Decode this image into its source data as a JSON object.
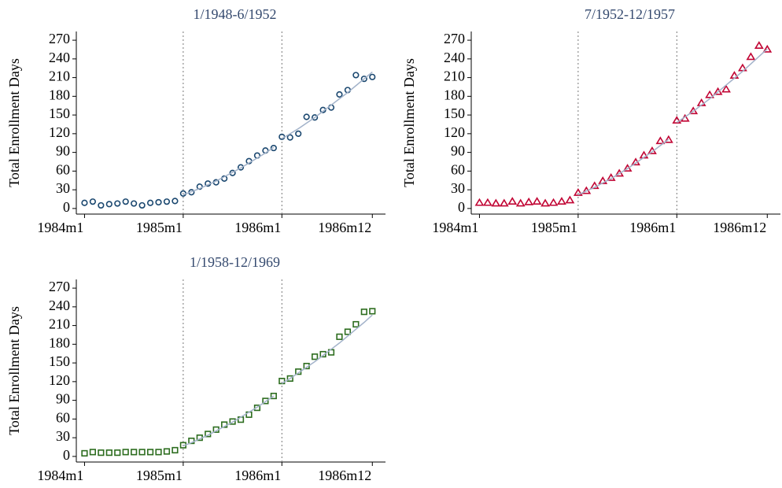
{
  "chart_data": [
    {
      "type": "scatter",
      "title": "1/1948-6/1952",
      "ylabel": "Total Enrollment Days",
      "x": [
        288,
        289,
        290,
        291,
        292,
        293,
        294,
        295,
        296,
        297,
        298,
        299,
        300,
        301,
        302,
        303,
        304,
        305,
        306,
        307,
        308,
        309,
        310,
        311,
        312,
        313,
        314,
        315,
        316,
        317,
        318,
        319,
        320,
        321,
        322,
        323
      ],
      "series": [
        {
          "color": "#1a476f",
          "marker": "circle",
          "values": [
            9,
            11,
            5,
            7,
            8,
            11,
            8,
            5,
            9,
            10,
            11,
            12,
            24,
            26,
            35,
            40,
            42,
            48,
            57,
            66,
            76,
            85,
            93,
            97,
            115,
            114,
            120,
            147,
            146,
            158,
            162,
            183,
            190,
            214,
            208,
            211
          ]
        },
        {
          "color": "#a3b3ca",
          "marker": "line",
          "values": [
            null,
            null,
            null,
            null,
            null,
            null,
            null,
            null,
            null,
            null,
            null,
            null,
            22,
            27,
            32,
            38,
            44,
            51,
            58,
            65,
            73,
            81,
            89,
            98,
            112,
            120,
            128,
            137,
            146,
            156,
            166,
            176,
            186,
            197,
            208,
            219
          ]
        }
      ],
      "xlim": [
        287,
        324.6
      ],
      "xticks": [
        {
          "value": 288,
          "label": "1984m1"
        },
        {
          "value": 300,
          "label": "1985m1"
        },
        {
          "value": 312,
          "label": "1986m1"
        },
        {
          "value": 323,
          "label": "1986m12"
        }
      ],
      "vlines": [
        300,
        312
      ],
      "ylim": [
        -9,
        284
      ],
      "yticks": [
        0,
        30,
        60,
        90,
        120,
        150,
        180,
        210,
        240,
        270
      ]
    },
    {
      "type": "scatter",
      "title": "7/1952-12/1957",
      "ylabel": "Total Enrollment Days",
      "x": [
        288,
        289,
        290,
        291,
        292,
        293,
        294,
        295,
        296,
        297,
        298,
        299,
        300,
        301,
        302,
        303,
        304,
        305,
        306,
        307,
        308,
        309,
        310,
        311,
        312,
        313,
        314,
        315,
        316,
        317,
        318,
        319,
        320,
        321,
        322,
        323
      ],
      "series": [
        {
          "color": "#c10534",
          "marker": "triangle",
          "values": [
            9,
            9,
            8,
            8,
            11,
            8,
            10,
            11,
            8,
            9,
            11,
            13,
            25,
            28,
            36,
            44,
            49,
            56,
            64,
            74,
            85,
            92,
            108,
            110,
            141,
            144,
            156,
            169,
            182,
            187,
            191,
            213,
            225,
            243,
            261,
            255
          ]
        },
        {
          "color": "#a3b3ca",
          "marker": "line",
          "values": [
            null,
            null,
            null,
            null,
            null,
            null,
            null,
            null,
            null,
            null,
            null,
            null,
            22,
            28,
            34,
            41,
            48,
            56,
            64,
            73,
            82,
            91,
            101,
            111,
            138,
            147,
            156,
            166,
            176,
            187,
            198,
            209,
            220,
            232,
            244,
            256
          ]
        }
      ],
      "xlim": [
        287,
        324.6
      ],
      "xticks": [
        {
          "value": 288,
          "label": "1984m1"
        },
        {
          "value": 300,
          "label": "1985m1"
        },
        {
          "value": 312,
          "label": "1986m1"
        },
        {
          "value": 323,
          "label": "1986m12"
        }
      ],
      "vlines": [
        300,
        312
      ],
      "ylim": [
        -9,
        284
      ],
      "yticks": [
        0,
        30,
        60,
        90,
        120,
        150,
        180,
        210,
        240,
        270
      ]
    },
    {
      "type": "scatter",
      "title": "1/1958-12/1969",
      "ylabel": "Total Enrollment Days",
      "x": [
        288,
        289,
        290,
        291,
        292,
        293,
        294,
        295,
        296,
        297,
        298,
        299,
        300,
        301,
        302,
        303,
        304,
        305,
        306,
        307,
        308,
        309,
        310,
        311,
        312,
        313,
        314,
        315,
        316,
        317,
        318,
        319,
        320,
        321,
        322,
        323
      ],
      "series": [
        {
          "color": "#2d6d1f",
          "marker": "square",
          "values": [
            5,
            7,
            6,
            6,
            6,
            7,
            7,
            7,
            7,
            7,
            8,
            10,
            18,
            25,
            30,
            36,
            43,
            51,
            56,
            59,
            67,
            78,
            89,
            97,
            121,
            125,
            136,
            145,
            160,
            164,
            167,
            192,
            200,
            212,
            232,
            233
          ]
        },
        {
          "color": "#a3b3ca",
          "marker": "line",
          "values": [
            null,
            null,
            null,
            null,
            null,
            null,
            null,
            null,
            null,
            null,
            null,
            null,
            17,
            22,
            28,
            34,
            41,
            48,
            55,
            63,
            71,
            79,
            88,
            97,
            117,
            125,
            134,
            143,
            152,
            162,
            172,
            182,
            193,
            204,
            215,
            227
          ]
        }
      ],
      "xlim": [
        287,
        324.6
      ],
      "xticks": [
        {
          "value": 288,
          "label": "1984m1"
        },
        {
          "value": 300,
          "label": "1985m1"
        },
        {
          "value": 312,
          "label": "1986m1"
        },
        {
          "value": 323,
          "label": "1986m12"
        }
      ],
      "vlines": [
        300,
        312
      ],
      "ylim": [
        -9,
        284
      ],
      "yticks": [
        0,
        30,
        60,
        90,
        120,
        150,
        180,
        210,
        240,
        270
      ]
    }
  ]
}
